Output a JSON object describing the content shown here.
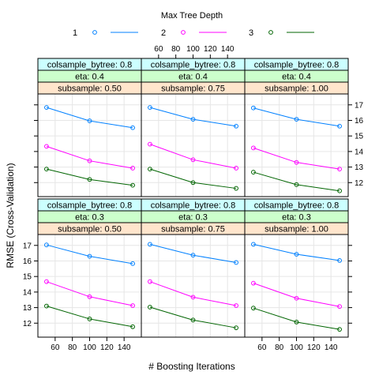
{
  "chart_data": {
    "type": "line",
    "legend": {
      "title": "Max Tree Depth",
      "placement": "top",
      "entries": [
        {
          "label": "1",
          "color": "#0080ff"
        },
        {
          "label": "2",
          "color": "#ff00ff"
        },
        {
          "label": "3",
          "color": "#006400"
        }
      ]
    },
    "xlabel": "# Boosting Iterations",
    "ylabel": "RMSE (Cross-Validation)",
    "xlim": [
      40,
      160
    ],
    "ylim": [
      11.1,
      17.7
    ],
    "x_ticks": [
      60,
      80,
      100,
      120,
      140
    ],
    "y_ticks": [
      12,
      13,
      14,
      15,
      16,
      17
    ],
    "grid": true,
    "x": [
      50,
      100,
      150
    ],
    "panels": [
      {
        "strips": [
          "colsample_bytree: 0.8",
          "eta: 0.3",
          "subsample: 0.50"
        ],
        "series": [
          {
            "name": "1",
            "values": [
              17.03,
              16.3,
              15.83
            ]
          },
          {
            "name": "2",
            "values": [
              14.67,
              13.7,
              13.13
            ]
          },
          {
            "name": "3",
            "values": [
              13.1,
              12.27,
              11.77
            ]
          }
        ]
      },
      {
        "strips": [
          "colsample_bytree: 0.8",
          "eta: 0.3",
          "subsample: 0.75"
        ],
        "series": [
          {
            "name": "1",
            "values": [
              17.07,
              16.37,
              15.9
            ]
          },
          {
            "name": "2",
            "values": [
              14.67,
              13.67,
              13.13
            ]
          },
          {
            "name": "3",
            "values": [
              13.03,
              12.2,
              11.7
            ]
          }
        ]
      },
      {
        "strips": [
          "colsample_bytree: 0.8",
          "eta: 0.3",
          "subsample: 1.00"
        ],
        "series": [
          {
            "name": "1",
            "values": [
              17.07,
              16.43,
              16.03
            ]
          },
          {
            "name": "2",
            "values": [
              14.57,
              13.6,
              13.07
            ]
          },
          {
            "name": "3",
            "values": [
              12.97,
              12.07,
              11.6
            ]
          }
        ]
      },
      {
        "strips": [
          "colsample_bytree: 0.8",
          "eta: 0.4",
          "subsample: 0.50"
        ],
        "series": [
          {
            "name": "1",
            "values": [
              16.83,
              15.97,
              15.53
            ]
          },
          {
            "name": "2",
            "values": [
              14.33,
              13.4,
              12.93
            ]
          },
          {
            "name": "3",
            "values": [
              12.87,
              12.2,
              11.83
            ]
          }
        ]
      },
      {
        "strips": [
          "colsample_bytree: 0.8",
          "eta: 0.4",
          "subsample: 0.75"
        ],
        "series": [
          {
            "name": "1",
            "values": [
              16.83,
              16.07,
              15.63
            ]
          },
          {
            "name": "2",
            "values": [
              14.47,
              13.47,
              12.93
            ]
          },
          {
            "name": "3",
            "values": [
              12.87,
              12.0,
              11.63
            ]
          }
        ]
      },
      {
        "strips": [
          "colsample_bytree: 0.8",
          "eta: 0.4",
          "subsample: 1.00"
        ],
        "series": [
          {
            "name": "1",
            "values": [
              16.8,
              16.07,
              15.63
            ]
          },
          {
            "name": "2",
            "values": [
              14.23,
              13.3,
              12.87
            ]
          },
          {
            "name": "3",
            "values": [
              12.67,
              11.87,
              11.47
            ]
          }
        ]
      }
    ],
    "colors": {
      "strip_row1": "#ccffff",
      "strip_row2": "#ccffcc",
      "strip_row3": "#ffe5cc",
      "grid": "#e6e6e6"
    }
  }
}
